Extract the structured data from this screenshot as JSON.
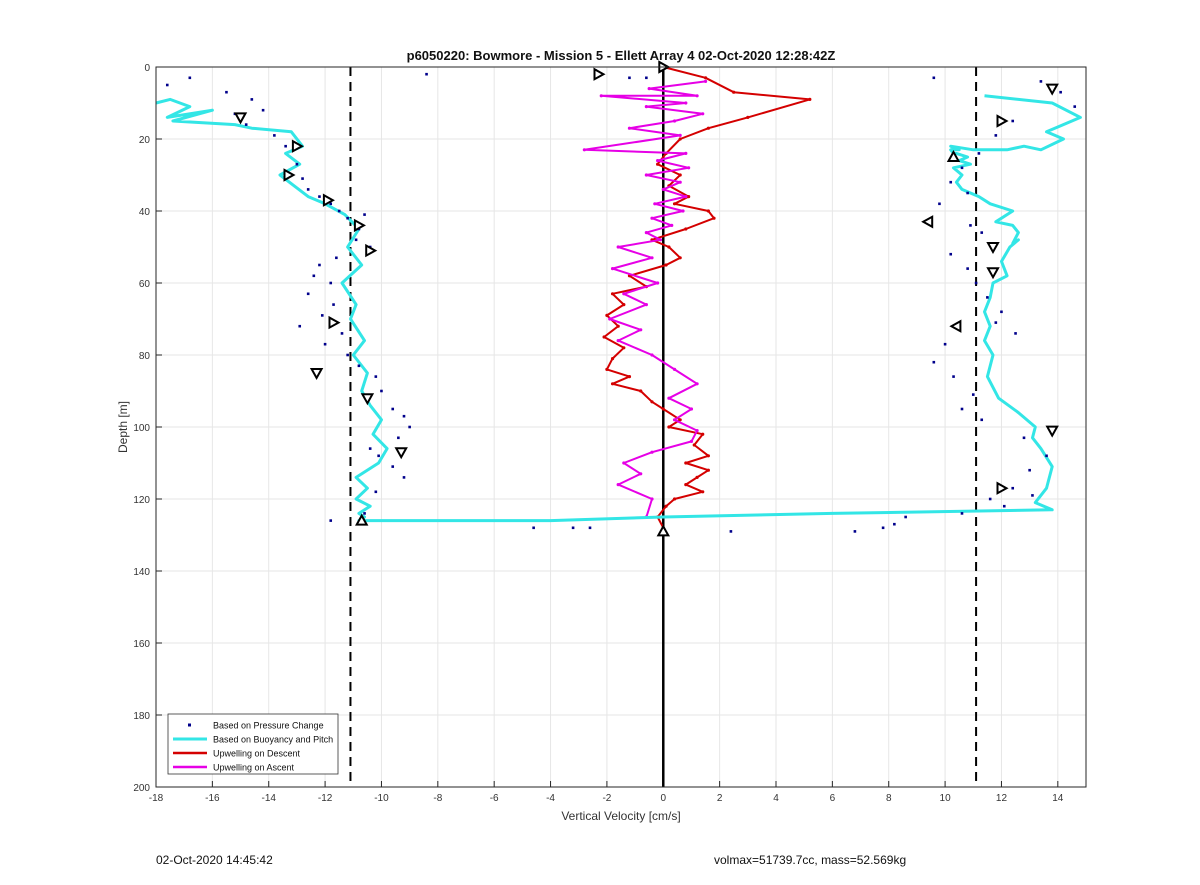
{
  "footer": {
    "timestamp": "02-Oct-2020 14:45:42",
    "params": "volmax=51739.7cc, mass=52.569kg"
  },
  "chart_data": {
    "type": "line",
    "title": "p6050220: Bowmore - Mission 5 - Ellett Array 4 02-Oct-2020 12:28:42Z",
    "xlabel": "Vertical Velocity [cm/s]",
    "ylabel": "Depth [m]",
    "xlim": [
      -18,
      15
    ],
    "ylim": [
      0,
      200
    ],
    "y_reversed": true,
    "grid": true,
    "xticks": [
      -18,
      -16,
      -14,
      -12,
      -10,
      -8,
      -6,
      -4,
      -2,
      0,
      2,
      4,
      6,
      8,
      10,
      12,
      14
    ],
    "yticks": [
      0,
      20,
      40,
      60,
      80,
      100,
      120,
      140,
      160,
      180,
      200
    ],
    "legend_position": "bottom-left",
    "colors": {
      "pressure": "#00008b",
      "buoyancy": "#33e6e6",
      "descent": "#d40000",
      "ascent": "#e600e6",
      "reference": "#000000"
    },
    "reference_lines": [
      {
        "x": -11.1,
        "style": "dashed"
      },
      {
        "x": 11.1,
        "style": "dashed"
      },
      {
        "x": 0,
        "style": "solid"
      }
    ],
    "series": [
      {
        "name": "Based on Pressure Change",
        "kind": "points",
        "x": [
          -17.6,
          -16.8,
          -15.5,
          -14.6,
          -14.2,
          -14.8,
          -15.2,
          -13.8,
          -13.4,
          -13.0,
          -12.8,
          -12.6,
          -12.2,
          -11.8,
          -11.5,
          -11.2,
          -10.8,
          -10.6,
          -10.9,
          -10.4,
          -11.6,
          -12.2,
          -12.4,
          -11.8,
          -12.6,
          -11.7,
          -12.1,
          -12.9,
          -11.4,
          -12.0,
          -11.2,
          -10.8,
          -10.2,
          -10.0,
          -9.6,
          -9.2,
          -9.0,
          -9.4,
          -10.4,
          -10.1,
          -9.6,
          -9.2,
          -10.2,
          -11.8,
          -10.6,
          -8.4,
          -2.4,
          -1.2,
          -0.6,
          9.6,
          13.4,
          14.1,
          14.6,
          12.4,
          11.8,
          11.2,
          10.6,
          10.2,
          10.8,
          9.8,
          10.9,
          11.3,
          10.2,
          10.8,
          11.1,
          11.5,
          12.0,
          11.8,
          12.5,
          10.0,
          9.6,
          10.3,
          11.0,
          10.6,
          11.3,
          12.8,
          13.6,
          13.0,
          12.4,
          11.6,
          12.1,
          13.1,
          10.6,
          8.6,
          8.2,
          7.8,
          6.8,
          2.4,
          -4.6,
          -3.2,
          -2.6
        ],
        "y": [
          5,
          3,
          7,
          9,
          12,
          16,
          13,
          19,
          22,
          27,
          31,
          34,
          36,
          38,
          40,
          42,
          45,
          41,
          48,
          50,
          53,
          55,
          58,
          60,
          63,
          66,
          69,
          72,
          74,
          77,
          80,
          83,
          86,
          90,
          95,
          97,
          100,
          103,
          106,
          108,
          111,
          114,
          118,
          126,
          124,
          2,
          1,
          3,
          3,
          3,
          4,
          7,
          11,
          15,
          19,
          24,
          28,
          32,
          35,
          38,
          44,
          46,
          52,
          56,
          60,
          64,
          68,
          71,
          74,
          77,
          82,
          86,
          91,
          95,
          98,
          103,
          108,
          112,
          117,
          120,
          122,
          119,
          124,
          125,
          127,
          128,
          129,
          129,
          128,
          128,
          128
        ]
      },
      {
        "name": "Based on Buoyancy and Pitch",
        "kind": "line",
        "x": [
          -18,
          -17.5,
          -16.8,
          -17.6,
          -16.0,
          -17.4,
          -15.2,
          -14.6,
          -13.2,
          -12.8,
          -13.4,
          -12.9,
          -13.6,
          -13.1,
          -12.6,
          -12.0,
          -11.3,
          -10.8,
          -11.2,
          -10.7,
          -11.4,
          -10.9,
          -11.1,
          -10.6,
          -11.0,
          -10.5,
          -10.7,
          -10.4,
          -10.0,
          -10.3,
          -9.8,
          -10.1,
          -10.9,
          -10.5,
          -10.9,
          -10.4,
          -10.8,
          -10.6,
          -10.7,
          -10.8,
          -4.0,
          0.0,
          6.0,
          13.8,
          13.2,
          13.6,
          13.8,
          13.4,
          13.1,
          13.2,
          12.6,
          11.9,
          11.5,
          11.7,
          11.4,
          11.6,
          11.4,
          11.6,
          11.7,
          12.2,
          12.0,
          12.3,
          12.6,
          12.4,
          12.6,
          12.4,
          11.8,
          12.4,
          11.6,
          11.2,
          10.6,
          10.4,
          10.6,
          10.3,
          10.9,
          10.5,
          10.8,
          10.4,
          10.3,
          10.2,
          10.5,
          10.2,
          11.0,
          11.4,
          12.2,
          12.8,
          13.4,
          14.2,
          13.6,
          14.8,
          13.8,
          11.4
        ],
        "y": [
          10,
          9,
          11,
          14,
          12,
          15,
          16,
          17,
          18,
          22,
          24,
          27,
          30,
          33,
          36,
          38,
          41,
          45,
          50,
          55,
          60,
          66,
          70,
          76,
          80,
          85,
          90,
          94,
          98,
          102,
          106,
          110,
          114,
          117,
          120,
          122,
          124,
          125,
          126,
          126,
          126,
          125,
          124,
          123,
          121,
          117,
          111,
          106,
          103,
          100,
          96,
          92,
          86,
          80,
          76,
          72,
          68,
          64,
          60,
          58,
          54,
          50,
          48,
          49,
          46,
          44,
          43,
          40,
          38,
          36,
          34,
          32,
          30,
          28,
          27,
          26,
          25,
          24,
          24,
          23,
          23,
          22,
          23,
          23,
          23,
          22,
          23,
          20,
          18,
          14,
          10,
          8
        ]
      },
      {
        "name": "Upwelling on Descent",
        "kind": "line",
        "x": [
          0,
          1.5,
          2.5,
          5.2,
          3.0,
          1.6,
          0.6,
          0.1,
          -0.2,
          0.6,
          0.2,
          0.9,
          0.4,
          1.6,
          1.8,
          0.8,
          -0.4,
          0.2,
          0.6,
          0.1,
          -1.2,
          -0.6,
          -1.8,
          -1.4,
          -2.0,
          -1.6,
          -2.1,
          -1.4,
          -1.8,
          -2.0,
          -1.2,
          -1.8,
          -0.8,
          -0.4,
          0.0,
          0.6,
          0.2,
          1.4,
          1.1,
          1.6,
          0.8,
          1.6,
          1.2,
          0.8,
          1.4,
          0.4,
          0.1,
          -0.2,
          0.0
        ],
        "y": [
          0,
          3,
          7,
          9,
          14,
          17,
          20,
          24,
          27,
          30,
          33,
          36,
          38,
          40,
          42,
          45,
          48,
          50,
          53,
          55,
          58,
          61,
          63,
          66,
          69,
          72,
          75,
          78,
          81,
          84,
          86,
          88,
          90,
          93,
          95,
          98,
          100,
          102,
          105,
          108,
          110,
          112,
          114,
          116,
          118,
          120,
          122,
          125,
          128
        ]
      },
      {
        "name": "Upwelling on Ascent",
        "kind": "line",
        "x": [
          1.5,
          -0.5,
          1.2,
          -2.2,
          0.8,
          -0.6,
          1.4,
          0.4,
          -1.2,
          0.6,
          -2.8,
          0.8,
          -0.2,
          0.9,
          -0.6,
          0.6,
          0.0,
          0.8,
          -0.3,
          0.7,
          -0.4,
          0.3,
          -0.6,
          -0.1,
          -1.6,
          -0.4,
          -1.8,
          -0.2,
          -1.4,
          -0.6,
          -1.9,
          -0.8,
          -1.6,
          -0.4,
          0.4,
          1.2,
          0.2,
          1.0,
          0.4,
          1.2,
          1.0,
          -0.4,
          -1.4,
          -0.8,
          -1.6,
          -0.4,
          -0.6
        ],
        "y": [
          4,
          6,
          8,
          8,
          10,
          11,
          13,
          15,
          17,
          19,
          23,
          24,
          26,
          28,
          30,
          32,
          34,
          36,
          38,
          40,
          42,
          44,
          46,
          48,
          50,
          53,
          56,
          60,
          63,
          66,
          70,
          73,
          76,
          80,
          84,
          88,
          92,
          95,
          98,
          101,
          104,
          107,
          110,
          113,
          116,
          120,
          125
        ]
      }
    ],
    "markers": [
      {
        "x": -15.0,
        "y": 14,
        "dir": "down"
      },
      {
        "x": -13.0,
        "y": 22,
        "dir": "right"
      },
      {
        "x": -13.3,
        "y": 30,
        "dir": "right"
      },
      {
        "x": -11.9,
        "y": 37,
        "dir": "right"
      },
      {
        "x": -10.8,
        "y": 44,
        "dir": "right"
      },
      {
        "x": -10.4,
        "y": 51,
        "dir": "right"
      },
      {
        "x": -11.7,
        "y": 71,
        "dir": "right"
      },
      {
        "x": -12.3,
        "y": 85,
        "dir": "down"
      },
      {
        "x": -10.5,
        "y": 92,
        "dir": "down"
      },
      {
        "x": -9.3,
        "y": 107,
        "dir": "down"
      },
      {
        "x": -10.7,
        "y": 126,
        "dir": "up"
      },
      {
        "x": -2.3,
        "y": 2,
        "dir": "right"
      },
      {
        "x": 0.0,
        "y": 0,
        "dir": "right"
      },
      {
        "x": 0.0,
        "y": 129,
        "dir": "up"
      },
      {
        "x": 13.8,
        "y": 6,
        "dir": "down"
      },
      {
        "x": 12.0,
        "y": 15,
        "dir": "right"
      },
      {
        "x": 10.3,
        "y": 25,
        "dir": "up"
      },
      {
        "x": 9.4,
        "y": 43,
        "dir": "left"
      },
      {
        "x": 11.7,
        "y": 50,
        "dir": "down"
      },
      {
        "x": 11.7,
        "y": 57,
        "dir": "down"
      },
      {
        "x": 10.4,
        "y": 72,
        "dir": "left"
      },
      {
        "x": 13.8,
        "y": 101,
        "dir": "down"
      },
      {
        "x": 12.0,
        "y": 117,
        "dir": "right"
      }
    ]
  }
}
